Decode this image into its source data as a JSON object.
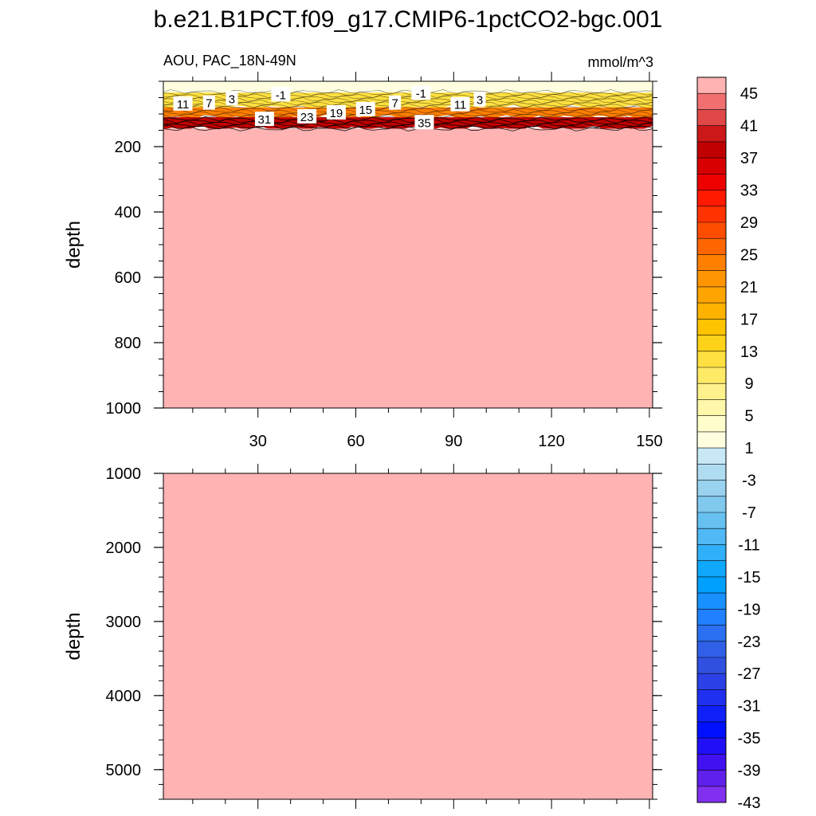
{
  "chart_data": {
    "type": "heatmap",
    "title": "b.e21.B1PCT.f09_g17.CMIP6-1pctCO2-bgc.001",
    "left_label": "AOU, PAC_18N-49N",
    "units_label": "mmol/m^3",
    "x_tick_labels": [
      "30",
      "60",
      "90",
      "120",
      "150"
    ],
    "xlim": [
      1,
      151
    ],
    "panels": [
      {
        "ylabel": "depth",
        "ylim": [
          0,
          1000
        ],
        "y_ticks": [
          200,
          400,
          600,
          800,
          1000
        ],
        "y_tick_labels": [
          "200",
          "400",
          "600",
          "800",
          "1000"
        ],
        "layers": [
          {
            "from": 0,
            "to": 35,
            "value": -3
          },
          {
            "from": 35,
            "to": 80,
            "value": 7
          },
          {
            "from": 80,
            "to": 110,
            "value": 19
          },
          {
            "from": 110,
            "to": 145,
            "value": 33
          },
          {
            "from": 145,
            "to": 1000,
            "value": 47
          }
        ],
        "contour_labels": [
          {
            "text": "11",
            "x": 7,
            "depth": 68
          },
          {
            "text": "7",
            "x": 15,
            "depth": 65
          },
          {
            "text": "3",
            "x": 22,
            "depth": 52
          },
          {
            "text": "-1",
            "x": 37,
            "depth": 40
          },
          {
            "text": "31",
            "x": 32,
            "depth": 115
          },
          {
            "text": "23",
            "x": 45,
            "depth": 107
          },
          {
            "text": "19",
            "x": 54,
            "depth": 95
          },
          {
            "text": "15",
            "x": 63,
            "depth": 85
          },
          {
            "text": "7",
            "x": 72,
            "depth": 65
          },
          {
            "text": "-1",
            "x": 80,
            "depth": 35
          },
          {
            "text": "11",
            "x": 92,
            "depth": 70
          },
          {
            "text": "3",
            "x": 98,
            "depth": 55
          },
          {
            "text": "35",
            "x": 81,
            "depth": 125
          }
        ]
      },
      {
        "ylabel": "depth",
        "ylim": [
          1000,
          5400
        ],
        "y_ticks": [
          1000,
          2000,
          3000,
          4000,
          5000
        ],
        "y_tick_labels": [
          "1000",
          "2000",
          "3000",
          "4000",
          "5000"
        ],
        "layers": [
          {
            "from": 1000,
            "to": 5400,
            "value": 47
          }
        ]
      }
    ],
    "colorbar": {
      "labels": [
        "45",
        "41",
        "37",
        "33",
        "29",
        "25",
        "21",
        "17",
        "13",
        "9",
        "5",
        "1",
        "-3",
        "-7",
        "-11",
        "-15",
        "-19",
        "-23",
        "-27",
        "-31",
        "-35",
        "-39",
        "-43"
      ],
      "colors": [
        "#ffb3b3",
        "#f07070",
        "#e04848",
        "#cc1818",
        "#c00000",
        "#d80000",
        "#ee0000",
        "#ff1a00",
        "#ff3300",
        "#ff4d00",
        "#ff6600",
        "#ff7f00",
        "#ff9500",
        "#ffa500",
        "#ffb300",
        "#ffc300",
        "#ffd21a",
        "#ffe040",
        "#ffea66",
        "#fff28c",
        "#fff7aa",
        "#ffffcc",
        "#ffffe0",
        "#c8e8f6",
        "#b0dcf2",
        "#98d2ef",
        "#80c8ee",
        "#66c0f0",
        "#50b8f4",
        "#30b0f8",
        "#10a8fc",
        "#00a0ff",
        "#1890ff",
        "#2080ff",
        "#2a70f0",
        "#3060e8",
        "#3050e0",
        "#2c40e8",
        "#2030f0",
        "#1020f8",
        "#0010ff",
        "#2010f8",
        "#4010f0",
        "#6020ec",
        "#8030ee"
      ]
    }
  }
}
